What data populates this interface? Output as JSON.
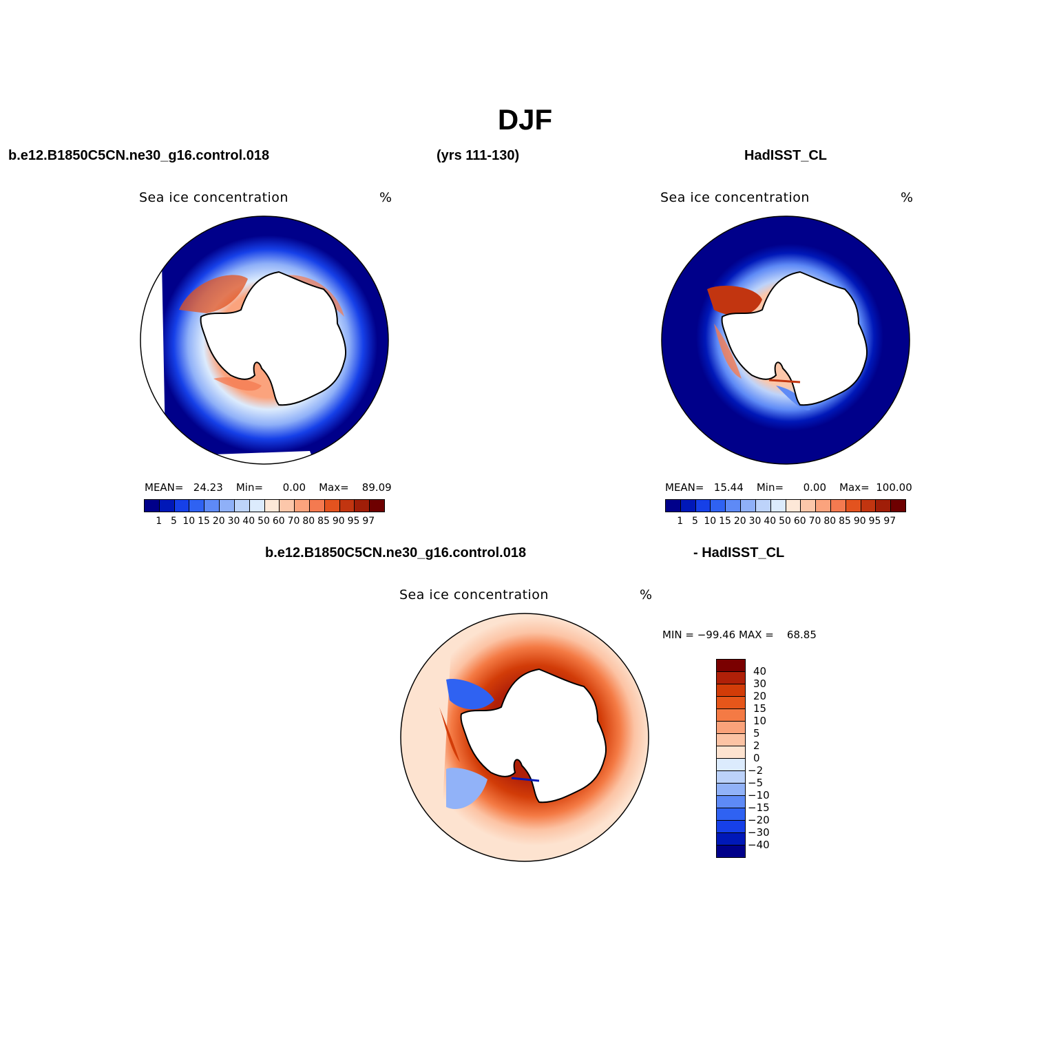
{
  "header": {
    "title": "DJF",
    "case_name": "b.e12.B1850C5CN.ne30_g16.control.018",
    "years": "(yrs 111-130)",
    "obs_name": "HadISST_CL",
    "diff_left": "b.e12.B1850C5CN.ne30_g16.control.018",
    "diff_right": "- HadISST_CL"
  },
  "panels": {
    "model": {
      "variable": "Sea ice concentration",
      "units": "%",
      "mean_label": "MEAN=",
      "mean": "24.23",
      "min_label": "Min=",
      "min": "0.00",
      "max_label": "Max=",
      "max": "89.09"
    },
    "obs": {
      "variable": "Sea ice concentration",
      "units": "%",
      "mean_label": "MEAN=",
      "mean": "15.44",
      "min_label": "Min=",
      "min": "0.00",
      "max_label": "Max=",
      "max": "100.00"
    },
    "diff": {
      "variable": "Sea ice concentration",
      "units": "%",
      "min_label": "MIN =",
      "min": "−99.46",
      "max_label": "MAX =",
      "max": "68.85"
    }
  },
  "colorbar_main": {
    "labels": [
      "1",
      "5",
      "10",
      "15",
      "20",
      "30",
      "40",
      "50",
      "60",
      "70",
      "80",
      "85",
      "90",
      "95",
      "97"
    ],
    "colors": [
      "#00008a",
      "#0018b8",
      "#1640e8",
      "#2f62f2",
      "#5e8af6",
      "#8fb0f8",
      "#bdd3fa",
      "#dcebfd",
      "#fde8d8",
      "#fcc7aa",
      "#fba37d",
      "#f47a50",
      "#e3531f",
      "#c23510",
      "#a01e08",
      "#6e0000"
    ]
  },
  "colorbar_diff": {
    "labels": [
      "40",
      "30",
      "20",
      "15",
      "10",
      "5",
      "2",
      "0",
      "−2",
      "−5",
      "−10",
      "−15",
      "−20",
      "−30",
      "−40"
    ],
    "colors": [
      "#7a0000",
      "#b02008",
      "#d23c08",
      "#e6561a",
      "#f47a44",
      "#faa27a",
      "#fcc3a4",
      "#fde3d0",
      "#dcebfd",
      "#bcd2fa",
      "#91b2f8",
      "#5e8af6",
      "#2f62f2",
      "#1640e8",
      "#0018b8",
      "#00008a"
    ]
  }
}
